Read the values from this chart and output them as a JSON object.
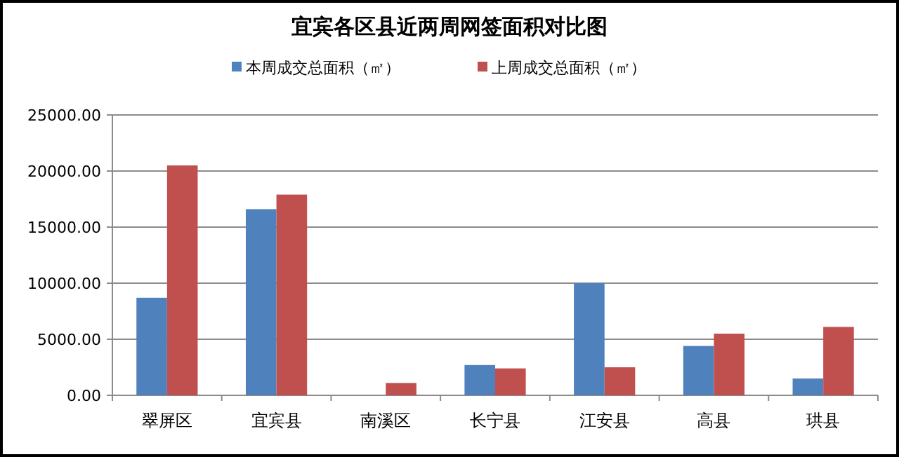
{
  "chart_data": {
    "type": "bar",
    "title": "宜宾各区县近两周网签面积对比图",
    "categories": [
      "翠屏区",
      "宜宾县",
      "南溪区",
      "长宁县",
      "江安县",
      "高县",
      "珙县"
    ],
    "series": [
      {
        "name": "本周成交总面积（㎡）",
        "color": "#4f81bd",
        "values": [
          8700,
          16600,
          0,
          2700,
          10000,
          4400,
          1500
        ]
      },
      {
        "name": "上周成交总面积（㎡）",
        "color": "#c0504d",
        "values": [
          20500,
          17900,
          1100,
          2400,
          2500,
          5500,
          6100
        ]
      }
    ],
    "ylim": [
      0,
      25000
    ],
    "yticks": [
      {
        "value": 0,
        "label": "0.00"
      },
      {
        "value": 5000,
        "label": "5000.00"
      },
      {
        "value": 10000,
        "label": "10000.00"
      },
      {
        "value": 15000,
        "label": "15000.00"
      },
      {
        "value": 20000,
        "label": "20000.00"
      },
      {
        "value": 25000,
        "label": "25000.00"
      }
    ],
    "grid": "y",
    "legend": "top"
  }
}
